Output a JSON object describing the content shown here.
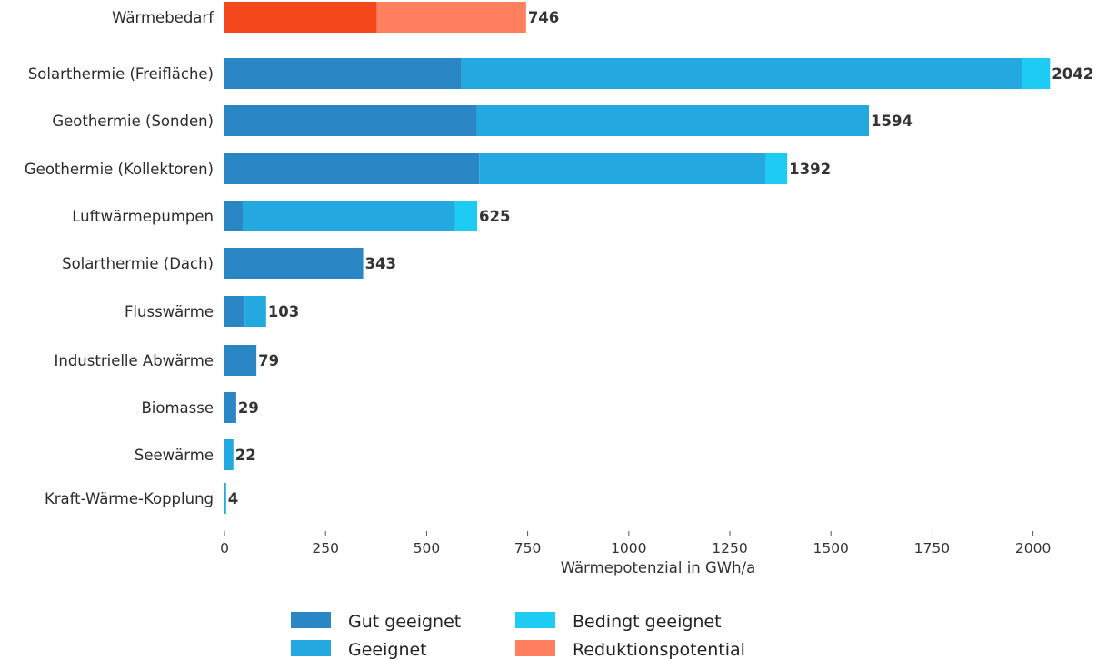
{
  "chart_data": {
    "type": "bar",
    "orientation": "horizontal",
    "stacked": true,
    "xlabel": "Wärmepotenzial in GWh/a",
    "xlim": [
      0,
      2080
    ],
    "xticks": [
      0,
      250,
      500,
      750,
      1000,
      1250,
      1500,
      1750,
      2000
    ],
    "grid": false,
    "legend_position": "bottom",
    "demand": {
      "category": "Wärmebedarf",
      "total": 746,
      "segments": [
        {
          "name": "Wärmebedarf",
          "value": 377,
          "color": "#F4471C"
        },
        {
          "name": "Reduktionspotential",
          "value": 369,
          "color": "#FF7F5E"
        }
      ]
    },
    "categories": [
      "Solarthermie (Freifläche)",
      "Geothermie (Sonden)",
      "Geothermie (Kollektoren)",
      "Luftwärmepumpen",
      "Solarthermie (Dach)",
      "Flusswärme",
      "Industrielle Abwärme",
      "Biomasse",
      "Seewärme",
      "Kraft-Wärme-Kopplung"
    ],
    "totals": [
      2042,
      1594,
      1392,
      625,
      343,
      103,
      79,
      29,
      22,
      4
    ],
    "series": [
      {
        "name": "Gut geeignet",
        "color": "#2A86C5",
        "values": [
          586,
          624,
          630,
          45,
          343,
          50,
          79,
          29,
          0,
          0
        ]
      },
      {
        "name": "Geeignet",
        "color": "#23A9E0",
        "values": [
          1388,
          970,
          709,
          525,
          0,
          53,
          0,
          0,
          22,
          4
        ]
      },
      {
        "name": "Bedingt geeignet",
        "color": "#1ECBF3",
        "values": [
          68,
          0,
          53,
          55,
          0,
          0,
          0,
          0,
          0,
          0
        ]
      }
    ],
    "legend": [
      {
        "name": "Gut geeignet",
        "color": "#2A86C5"
      },
      {
        "name": "Bedingt geeignet",
        "color": "#1ECBF3"
      },
      {
        "name": "Geeignet",
        "color": "#23A9E0"
      },
      {
        "name": "Reduktionspotential",
        "color": "#FF7F5E"
      }
    ]
  }
}
